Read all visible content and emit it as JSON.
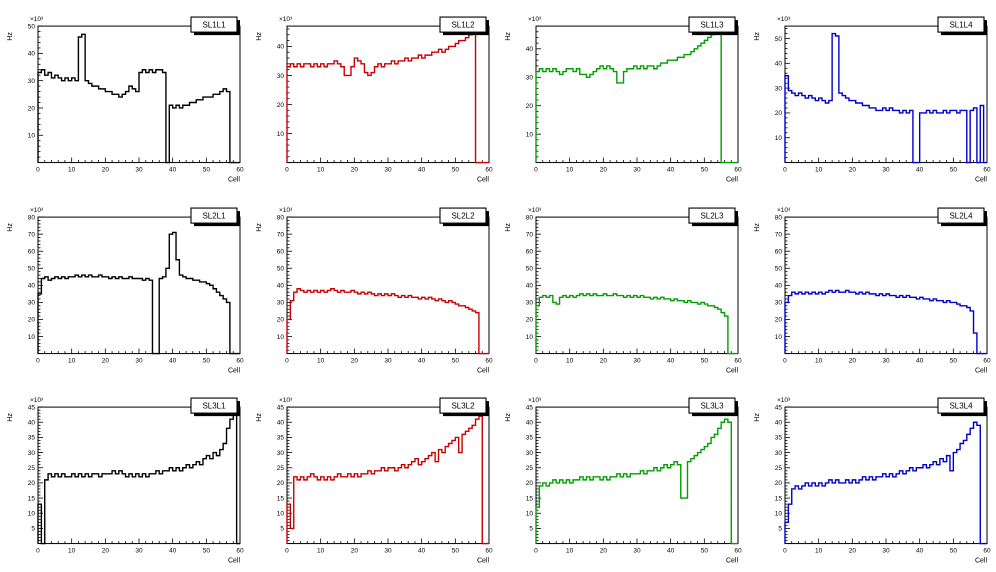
{
  "page": {
    "background": "#ffffff"
  },
  "chart_data": [
    {
      "type": "bar",
      "title": "SL1L1",
      "color": "#000000",
      "xlabel": "Cell",
      "ylabel": "Hz",
      "y_multiplier": "×10³",
      "xlim": [
        0,
        60
      ],
      "ylim": [
        0,
        50
      ],
      "ytick_step": 10,
      "xtick_step": 10,
      "bin_width": 1,
      "values": [
        33,
        34,
        32,
        33,
        31,
        32,
        31,
        30,
        31,
        30,
        31,
        30,
        46,
        47,
        30,
        29,
        28,
        28,
        27,
        27,
        26,
        26,
        25,
        25,
        24,
        25,
        26,
        28,
        27,
        26,
        33,
        34,
        33,
        34,
        33,
        34,
        34,
        33,
        0,
        21,
        20,
        21,
        20,
        21,
        21,
        22,
        22,
        23,
        23,
        24,
        24,
        24,
        25,
        25,
        26,
        27,
        26,
        0,
        0,
        0
      ]
    },
    {
      "type": "bar",
      "title": "SL1L2",
      "color": "#cc0000",
      "xlabel": "Cell",
      "ylabel": "Hz",
      "y_multiplier": "×10³",
      "xlim": [
        0,
        60
      ],
      "ylim": [
        0,
        47
      ],
      "ytick_step": 10,
      "xtick_step": 10,
      "bin_width": 1,
      "values": [
        33,
        34,
        33,
        34,
        33,
        34,
        34,
        33,
        34,
        33,
        34,
        33,
        34,
        34,
        35,
        34,
        33,
        30,
        30,
        33,
        36,
        35,
        34,
        31,
        30,
        31,
        33,
        34,
        33,
        34,
        34,
        35,
        34,
        35,
        35,
        36,
        35,
        36,
        36,
        37,
        36,
        37,
        37,
        38,
        38,
        39,
        38,
        39,
        40,
        40,
        41,
        42,
        42,
        43,
        44,
        45,
        0,
        0,
        0,
        0
      ]
    },
    {
      "type": "bar",
      "title": "SL1L3",
      "color": "#00a000",
      "xlabel": "Cell",
      "ylabel": "Hz",
      "y_multiplier": "×10³",
      "xlim": [
        0,
        60
      ],
      "ylim": [
        0,
        48
      ],
      "ytick_step": 10,
      "xtick_step": 10,
      "bin_width": 1,
      "values": [
        32,
        33,
        32,
        33,
        32,
        33,
        32,
        31,
        32,
        33,
        33,
        32,
        33,
        31,
        31,
        30,
        31,
        32,
        33,
        34,
        33,
        34,
        33,
        32,
        28,
        28,
        32,
        33,
        33,
        34,
        33,
        34,
        33,
        34,
        34,
        33,
        34,
        35,
        35,
        36,
        36,
        36,
        37,
        37,
        38,
        38,
        39,
        40,
        41,
        42,
        43,
        44,
        45,
        46,
        47,
        0,
        0,
        0,
        0,
        0
      ]
    },
    {
      "type": "bar",
      "title": "SL1L4",
      "color": "#0000cc",
      "xlabel": "Cell",
      "ylabel": "Hz",
      "y_multiplier": "×10³",
      "xlim": [
        0,
        60
      ],
      "ylim": [
        0,
        55
      ],
      "ytick_step": 10,
      "xtick_step": 10,
      "bin_width": 1,
      "values": [
        35,
        29,
        28,
        27,
        28,
        27,
        26,
        27,
        26,
        25,
        26,
        25,
        24,
        25,
        52,
        51,
        28,
        27,
        26,
        25,
        25,
        24,
        24,
        23,
        23,
        22,
        22,
        21,
        21,
        22,
        21,
        22,
        21,
        21,
        20,
        21,
        20,
        21,
        0,
        0,
        20,
        20,
        21,
        20,
        21,
        20,
        20,
        21,
        20,
        21,
        21,
        20,
        21,
        21,
        0,
        21,
        22,
        0,
        23,
        0
      ]
    },
    {
      "type": "bar",
      "title": "SL2L1",
      "color": "#000000",
      "xlabel": "Cell",
      "ylabel": "Hz",
      "y_multiplier": "×10³",
      "xlim": [
        0,
        60
      ],
      "ylim": [
        0,
        80
      ],
      "ytick_step": 10,
      "xtick_step": 10,
      "bin_width": 1,
      "values": [
        35,
        44,
        45,
        43,
        44,
        45,
        44,
        45,
        44,
        45,
        45,
        46,
        45,
        46,
        45,
        46,
        45,
        45,
        46,
        45,
        45,
        44,
        45,
        44,
        45,
        44,
        44,
        45,
        44,
        44,
        44,
        43,
        44,
        43,
        0,
        0,
        44,
        45,
        50,
        70,
        71,
        55,
        46,
        45,
        44,
        44,
        43,
        43,
        42,
        42,
        41,
        40,
        38,
        36,
        34,
        32,
        30,
        0,
        0,
        0
      ]
    },
    {
      "type": "bar",
      "title": "SL2L2",
      "color": "#cc0000",
      "xlabel": "Cell",
      "ylabel": "Hz",
      "y_multiplier": "×10³",
      "xlim": [
        0,
        60
      ],
      "ylim": [
        0,
        80
      ],
      "ytick_step": 10,
      "xtick_step": 10,
      "bin_width": 1,
      "values": [
        20,
        31,
        36,
        38,
        37,
        36,
        37,
        36,
        37,
        36,
        37,
        36,
        37,
        38,
        37,
        36,
        37,
        36,
        36,
        37,
        36,
        35,
        36,
        35,
        36,
        35,
        34,
        35,
        34,
        35,
        34,
        35,
        34,
        33,
        34,
        33,
        34,
        33,
        33,
        32,
        33,
        32,
        33,
        32,
        31,
        32,
        31,
        30,
        31,
        30,
        29,
        28,
        28,
        27,
        26,
        25,
        24,
        0,
        0,
        0
      ]
    },
    {
      "type": "bar",
      "title": "SL2L3",
      "color": "#00a000",
      "xlabel": "Cell",
      "ylabel": "Hz",
      "y_multiplier": "×10³",
      "xlim": [
        0,
        60
      ],
      "ylim": [
        0,
        80
      ],
      "ytick_step": 10,
      "xtick_step": 10,
      "bin_width": 1,
      "values": [
        28,
        33,
        34,
        33,
        34,
        30,
        29,
        33,
        34,
        33,
        34,
        33,
        34,
        35,
        34,
        35,
        34,
        35,
        34,
        34,
        35,
        34,
        34,
        35,
        34,
        34,
        33,
        34,
        33,
        34,
        33,
        34,
        33,
        33,
        32,
        33,
        32,
        33,
        32,
        32,
        31,
        32,
        31,
        31,
        30,
        31,
        30,
        30,
        29,
        30,
        29,
        28,
        28,
        27,
        26,
        24,
        22,
        0,
        0,
        0
      ]
    },
    {
      "type": "bar",
      "title": "SL2L4",
      "color": "#0000cc",
      "xlabel": "Cell",
      "ylabel": "Hz",
      "y_multiplier": "×10³",
      "xlim": [
        0,
        60
      ],
      "ylim": [
        0,
        80
      ],
      "ytick_step": 10,
      "xtick_step": 10,
      "bin_width": 1,
      "values": [
        30,
        34,
        36,
        35,
        36,
        35,
        36,
        35,
        36,
        35,
        36,
        35,
        36,
        37,
        36,
        37,
        36,
        36,
        37,
        36,
        36,
        35,
        36,
        35,
        36,
        35,
        35,
        34,
        35,
        34,
        35,
        34,
        34,
        33,
        34,
        33,
        34,
        33,
        33,
        32,
        33,
        32,
        32,
        31,
        32,
        31,
        31,
        30,
        31,
        30,
        30,
        29,
        28,
        28,
        27,
        25,
        12,
        0,
        0,
        0
      ]
    },
    {
      "type": "bar",
      "title": "SL3L1",
      "color": "#000000",
      "xlabel": "Cell",
      "ylabel": "Hz",
      "y_multiplier": "×10³",
      "xlim": [
        0,
        60
      ],
      "ylim": [
        0,
        45
      ],
      "ytick_step": 5,
      "xtick_step": 10,
      "bin_width": 1,
      "values": [
        13,
        0,
        21,
        23,
        22,
        23,
        22,
        23,
        22,
        22,
        23,
        22,
        23,
        22,
        23,
        22,
        23,
        23,
        22,
        23,
        23,
        23,
        24,
        23,
        24,
        23,
        22,
        23,
        22,
        23,
        22,
        23,
        22,
        23,
        23,
        24,
        23,
        24,
        24,
        25,
        24,
        25,
        24,
        25,
        26,
        25,
        26,
        27,
        26,
        28,
        29,
        28,
        30,
        29,
        31,
        33,
        38,
        41,
        45,
        0
      ]
    },
    {
      "type": "bar",
      "title": "SL3L2",
      "color": "#cc0000",
      "xlabel": "Cell",
      "ylabel": "Hz",
      "y_multiplier": "×10³",
      "xlim": [
        0,
        60
      ],
      "ylim": [
        0,
        45
      ],
      "ytick_step": 5,
      "xtick_step": 10,
      "bin_width": 1,
      "values": [
        13,
        5,
        22,
        21,
        22,
        21,
        22,
        23,
        22,
        21,
        22,
        21,
        22,
        21,
        22,
        23,
        22,
        22,
        23,
        22,
        23,
        22,
        23,
        23,
        24,
        23,
        24,
        24,
        25,
        24,
        25,
        25,
        24,
        25,
        26,
        25,
        26,
        27,
        28,
        26,
        27,
        28,
        29,
        30,
        27,
        31,
        30,
        32,
        33,
        34,
        35,
        30,
        36,
        37,
        38,
        39,
        41,
        42,
        0,
        0
      ]
    },
    {
      "type": "bar",
      "title": "SL3L3",
      "color": "#00a000",
      "xlabel": "Cell",
      "ylabel": "Hz",
      "y_multiplier": "×10³",
      "xlim": [
        0,
        60
      ],
      "ylim": [
        0,
        45
      ],
      "ytick_step": 5,
      "xtick_step": 10,
      "bin_width": 1,
      "values": [
        12,
        19,
        20,
        19,
        20,
        21,
        20,
        21,
        20,
        21,
        20,
        21,
        21,
        22,
        21,
        22,
        21,
        22,
        22,
        21,
        22,
        21,
        22,
        22,
        23,
        22,
        23,
        22,
        23,
        23,
        23,
        24,
        23,
        24,
        24,
        25,
        24,
        25,
        26,
        25,
        26,
        27,
        26,
        15,
        15,
        27,
        28,
        29,
        30,
        31,
        32,
        33,
        35,
        36,
        38,
        40,
        41,
        40,
        0,
        0
      ]
    },
    {
      "type": "bar",
      "title": "SL3L4",
      "color": "#0000cc",
      "xlabel": "Cell",
      "ylabel": "Hz",
      "y_multiplier": "×10³",
      "xlim": [
        0,
        60
      ],
      "ylim": [
        0,
        45
      ],
      "ytick_step": 5,
      "xtick_step": 10,
      "bin_width": 1,
      "values": [
        7,
        13,
        18,
        19,
        18,
        19,
        20,
        19,
        20,
        19,
        20,
        19,
        20,
        21,
        20,
        21,
        20,
        20,
        21,
        20,
        21,
        20,
        21,
        22,
        21,
        22,
        21,
        22,
        22,
        23,
        22,
        23,
        22,
        23,
        24,
        23,
        24,
        25,
        24,
        25,
        25,
        26,
        25,
        26,
        27,
        26,
        28,
        27,
        29,
        24,
        30,
        31,
        33,
        34,
        36,
        38,
        40,
        39,
        0,
        0
      ]
    }
  ]
}
